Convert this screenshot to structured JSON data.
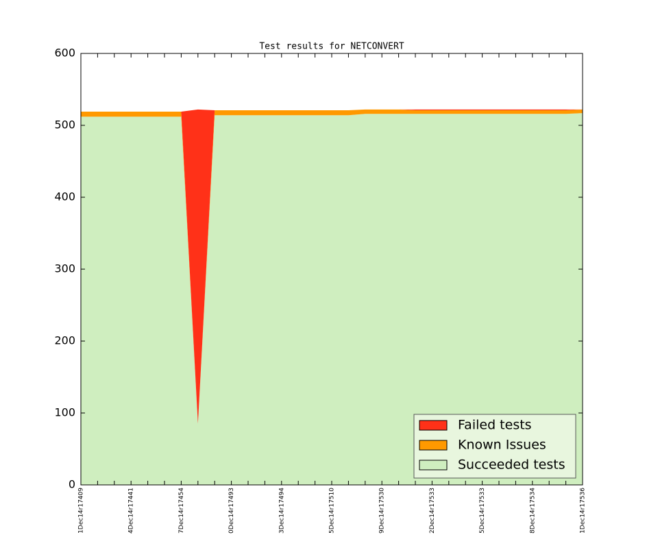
{
  "chart_data": {
    "type": "stacked_area",
    "title": "Test results for NETCONVERT",
    "categories": [
      "1Dec14r17409",
      null,
      null,
      "4Dec14r17441",
      null,
      null,
      "7Dec14r17454",
      null,
      null,
      "0Dec14r17493",
      null,
      null,
      "3Dec14r17494",
      null,
      null,
      "5Dec14r17510",
      null,
      null,
      "9Dec14r17530",
      null,
      null,
      "2Dec14r17533",
      null,
      null,
      "5Dec14r17533",
      null,
      null,
      "8Dec14r17534",
      null,
      null,
      "1Dec14r17536"
    ],
    "series": [
      {
        "name": "Failed tests",
        "color": "#ff3118",
        "values": [
          0,
          0,
          0,
          0,
          0,
          0,
          0,
          437,
          0,
          0,
          0,
          0,
          0,
          0,
          0,
          0,
          0,
          0,
          0,
          0,
          1,
          1,
          1,
          1,
          1,
          1,
          1,
          1,
          1,
          1,
          0
        ]
      },
      {
        "name": "Known Issues",
        "color": "#ff9900",
        "values": [
          7,
          7,
          7,
          7,
          7,
          7,
          7,
          0,
          7,
          7,
          7,
          7,
          7,
          7,
          7,
          7,
          7,
          6,
          6,
          6,
          5,
          5,
          5,
          5,
          5,
          5,
          5,
          5,
          5,
          5,
          5
        ]
      },
      {
        "name": "Succeeded tests",
        "color": "#cfeebf",
        "values": [
          512,
          512,
          512,
          512,
          512,
          512,
          512,
          85,
          514,
          514,
          514,
          514,
          514,
          514,
          514,
          514,
          514,
          516,
          516,
          516,
          516,
          516,
          516,
          516,
          516,
          516,
          516,
          516,
          516,
          516,
          517
        ]
      }
    ],
    "ylim": [
      0,
      600
    ],
    "yticks": [
      0,
      100,
      200,
      300,
      400,
      500,
      600
    ],
    "legend": "lower right"
  }
}
